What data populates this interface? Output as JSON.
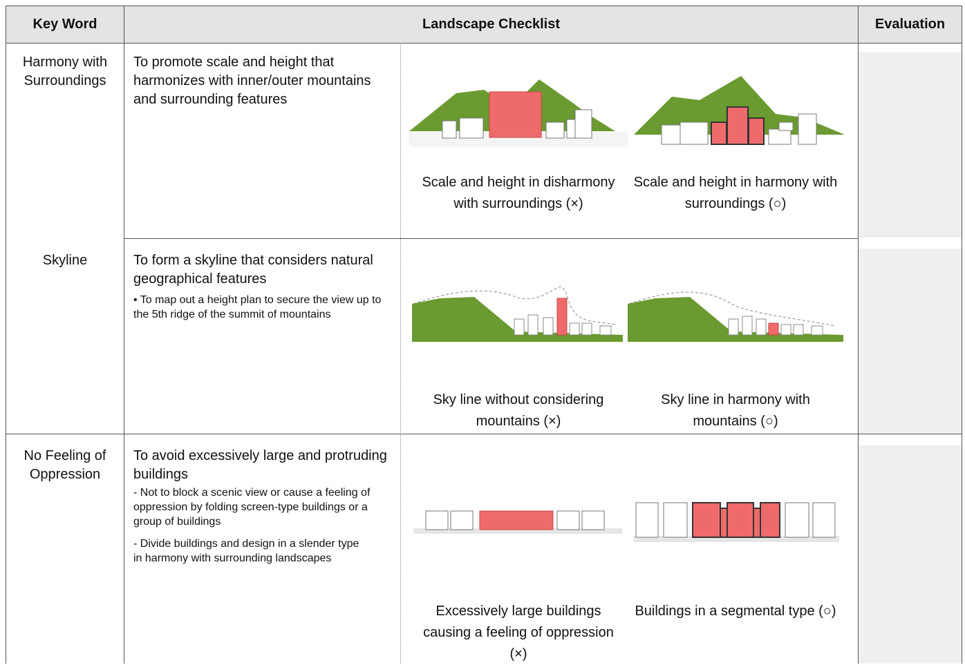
{
  "header": {
    "key_word": "Key Word",
    "checklist": "Landscape Checklist",
    "evaluation": "Evaluation"
  },
  "rows": [
    {
      "key_word": "Harmony with Surroundings",
      "description": "To promote scale and height that harmonizes with inner/outer mountains and surrounding features",
      "examples": [
        {
          "caption": "Scale and height in disharmony with surroundings (×)"
        },
        {
          "caption": "Scale and height in harmony with surroundings (○)"
        }
      ]
    },
    {
      "key_word": "Skyline",
      "description": "To form a skyline that considers natural geographical features",
      "notes": [
        "• To map out a height plan to secure the view up to the 5th ridge of the summit of mountains"
      ],
      "examples": [
        {
          "caption": "Sky line without considering mountains (×)"
        },
        {
          "caption": "Sky line in harmony with mountains (○)"
        }
      ]
    },
    {
      "key_word": "No Feeling of Oppression",
      "description": "To avoid excessively large and protruding buildings",
      "notes": [
        "- Not to block a scenic view or cause a feeling of oppression by folding screen-type buildings or a group of buildings",
        "- Divide buildings and design in a slender type in harmony with surrounding landscapes"
      ],
      "examples": [
        {
          "caption": "Excessively large buildings causing a feeling of oppression (×)"
        },
        {
          "caption": "Buildings in a segmental type (○)"
        }
      ]
    }
  ]
}
